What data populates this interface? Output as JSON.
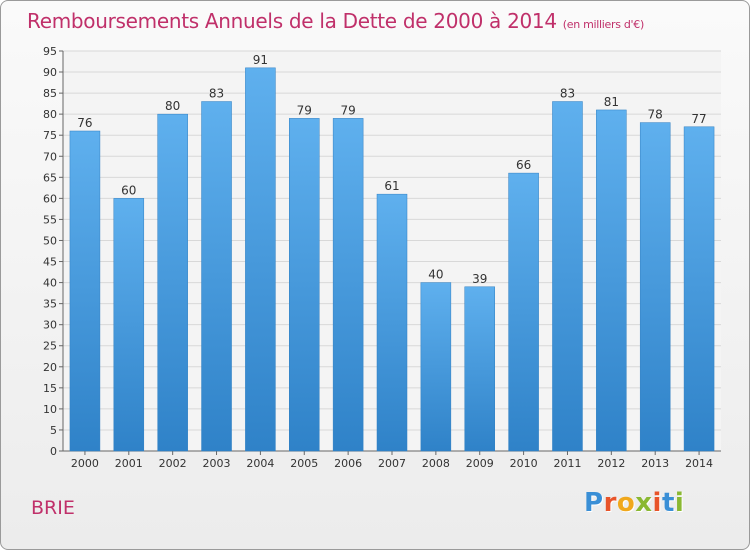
{
  "title": "Remboursements Annuels de la Dette de 2000 à 2014",
  "unit_note": "(en milliers d'€)",
  "location": "BRIE",
  "logo": {
    "text": "Proxiti",
    "letter_colors": [
      "#3a8fd6",
      "#e8542a",
      "#f0a81c",
      "#8ab832",
      "#e8542a",
      "#3a8fd6",
      "#8ab832"
    ]
  },
  "colors": {
    "bar": "#3f95dd",
    "bar_light": "#5fb0ee",
    "title": "#c0306a"
  },
  "chart_data": {
    "type": "bar",
    "categories": [
      "2000",
      "2001",
      "2002",
      "2003",
      "2004",
      "2005",
      "2006",
      "2007",
      "2008",
      "2009",
      "2010",
      "2011",
      "2012",
      "2013",
      "2014"
    ],
    "values": [
      76,
      60,
      80,
      83,
      91,
      79,
      79,
      61,
      40,
      39,
      66,
      83,
      81,
      78,
      77
    ],
    "title": "Remboursements Annuels de la Dette de 2000 à 2014",
    "ylim": [
      0,
      95
    ],
    "yticks": [
      0,
      5,
      10,
      15,
      20,
      25,
      30,
      35,
      40,
      45,
      50,
      55,
      60,
      65,
      70,
      75,
      80,
      85,
      90,
      95
    ],
    "grid": true
  }
}
